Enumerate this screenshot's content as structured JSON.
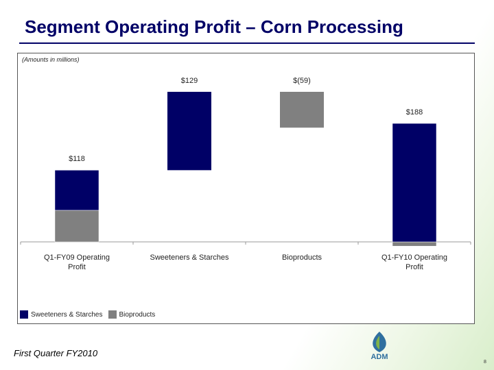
{
  "header": {
    "title": "Segment Operating Profit – Corn Processing"
  },
  "chart_data": {
    "type": "waterfall",
    "note": "(Amounts in millions)",
    "categories": [
      "Q1-FY09 Operating Profit",
      "Sweeteners & Starches",
      "Bioproducts",
      "Q1-FY10 Operating Profit"
    ],
    "totals": [
      118,
      129,
      -59,
      188
    ],
    "value_labels": [
      "$118",
      "$129",
      "$(59)",
      "$188"
    ],
    "series": [
      {
        "name": "Sweeteners & Starches",
        "color": "#000066",
        "values": [
          66,
          129,
          null,
          195
        ]
      },
      {
        "name": "Bioproducts",
        "color": "#808080",
        "values": [
          52,
          null,
          -59,
          -7
        ]
      }
    ]
  },
  "footer": {
    "text": "First Quarter FY2010",
    "logo": "ADM",
    "page": "8"
  }
}
